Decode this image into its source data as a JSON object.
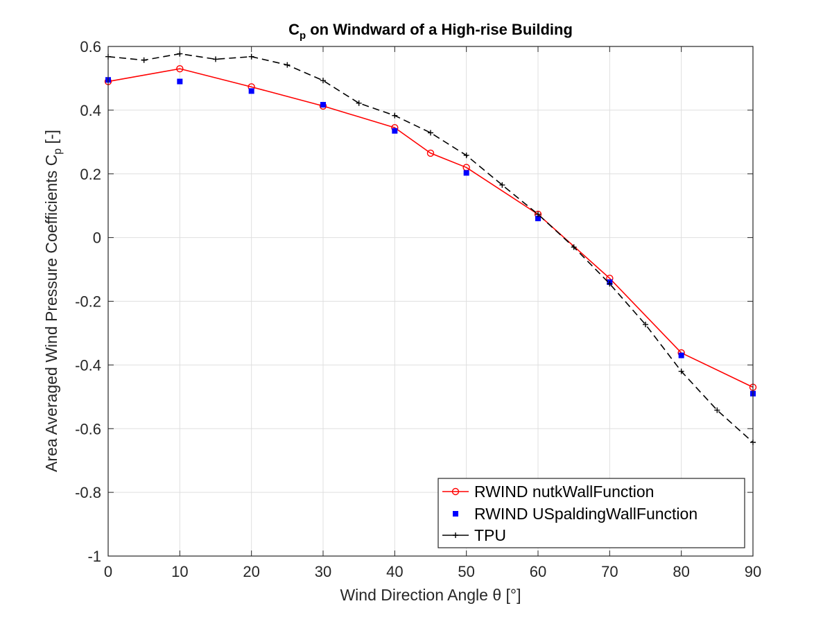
{
  "chart_data": {
    "type": "line",
    "title": {
      "base": "C",
      "sub": "p",
      "rest": " on Windward of a High-rise Building"
    },
    "xlabel": "Wind Direction Angle θ [°]",
    "ylabel": {
      "base": "Area Averaged Wind Pressure Coefficients C",
      "sub": "p",
      "rest": " [-]"
    },
    "xlim": [
      0,
      90
    ],
    "ylim": [
      -1,
      0.6
    ],
    "xticks": [
      0,
      10,
      20,
      30,
      40,
      50,
      60,
      70,
      80,
      90
    ],
    "yticks": [
      -1,
      -0.8,
      -0.6,
      -0.4,
      -0.2,
      0,
      0.2,
      0.4,
      0.6
    ],
    "xtick_labels": [
      "0",
      "10",
      "20",
      "30",
      "40",
      "50",
      "60",
      "70",
      "80",
      "90"
    ],
    "ytick_labels": [
      "-1",
      "-0.8",
      "-0.6",
      "-0.4",
      "-0.2",
      "0",
      "0.2",
      "0.4",
      "0.6"
    ],
    "grid": true,
    "legend_position": "bottom-right",
    "series": [
      {
        "name": "RWIND nutkWallFunction",
        "color": "#ff0000",
        "line": "solid",
        "marker": "circle",
        "x": [
          0,
          10,
          20,
          30,
          40,
          45,
          50,
          60,
          70,
          80,
          90
        ],
        "y": [
          0.49,
          0.53,
          0.473,
          0.413,
          0.345,
          0.265,
          0.22,
          0.073,
          -0.128,
          -0.362,
          -0.47
        ]
      },
      {
        "name": "RWIND USpaldingWallFunction",
        "color": "#0000ff",
        "line": "none",
        "marker": "square",
        "x": [
          0,
          10,
          20,
          30,
          40,
          50,
          60,
          70,
          80,
          90
        ],
        "y": [
          0.495,
          0.49,
          0.46,
          0.417,
          0.335,
          0.203,
          0.06,
          -0.14,
          -0.37,
          -0.49
        ]
      },
      {
        "name": "TPU",
        "color": "#000000",
        "line": "dashed",
        "marker": "plus",
        "x": [
          0,
          5,
          10,
          15,
          20,
          25,
          30,
          35,
          40,
          45,
          50,
          55,
          60,
          65,
          70,
          75,
          80,
          85,
          90
        ],
        "y": [
          0.568,
          0.557,
          0.577,
          0.56,
          0.568,
          0.542,
          0.493,
          0.422,
          0.383,
          0.329,
          0.258,
          0.165,
          0.073,
          -0.03,
          -0.145,
          -0.273,
          -0.42,
          -0.542,
          -0.643
        ]
      }
    ]
  }
}
